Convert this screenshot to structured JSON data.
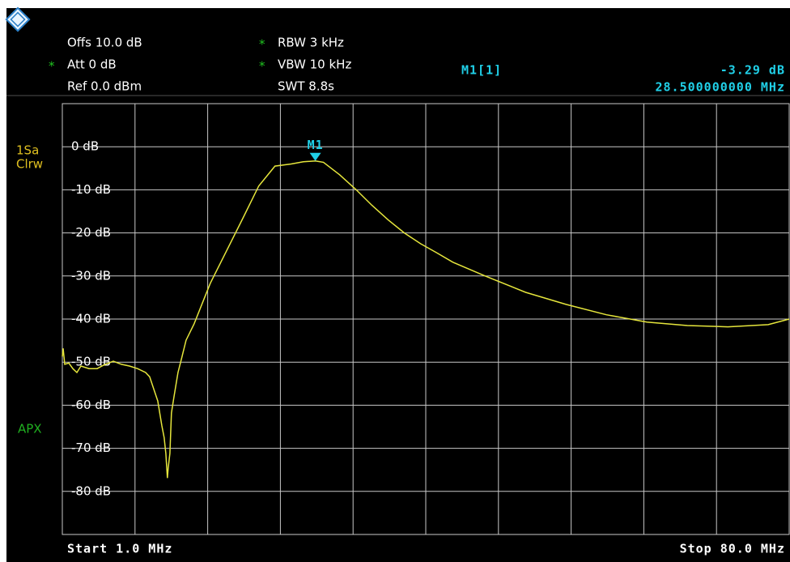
{
  "chart_data": {
    "type": "line",
    "settings_left": [
      {
        "text": "Offs 10.0 dB"
      },
      {
        "flag": "*",
        "text": "Att  0 dB"
      },
      {
        "text": "Ref  0.0 dBm"
      }
    ],
    "settings_mid": [
      {
        "flag": "*",
        "text": "RBW 3 kHz"
      },
      {
        "flag": "*",
        "text": "VBW 10 kHz"
      },
      {
        "text": "SWT 8.8s"
      }
    ],
    "trace_mode": [
      "1Sa",
      "Clrw"
    ],
    "detector": "APX",
    "marker": {
      "label": "M1",
      "readout_label": "M1[1]",
      "x": 28.5,
      "y": -3.29,
      "value_label": "-3.29 dB",
      "x_label": "28.500000000 MHz"
    },
    "x_start_label": "Start 1.0 MHz",
    "x_stop_label": "Stop 80.0 MHz",
    "xlim": [
      1,
      80
    ],
    "ylim": [
      -90,
      10
    ],
    "yticks": [
      {
        "value": 0,
        "label": "0 dB"
      },
      {
        "value": -10,
        "label": "-10 dB"
      },
      {
        "value": -20,
        "label": "-20 dB"
      },
      {
        "value": -30,
        "label": "-30 dB"
      },
      {
        "value": -40,
        "label": "-40 dB"
      },
      {
        "value": -50,
        "label": "-50 dB"
      },
      {
        "value": -60,
        "label": "-60 dB"
      },
      {
        "value": -70,
        "label": "-70 dB"
      },
      {
        "value": -80,
        "label": "-80 dB"
      }
    ],
    "grid": true,
    "color": "#e6e63c",
    "x": [
      1.0,
      1.09,
      1.26,
      1.7,
      2.14,
      2.58,
      3.02,
      3.9,
      4.78,
      5.66,
      6.54,
      7.42,
      8.29,
      9.17,
      10.05,
      10.49,
      10.93,
      11.37,
      11.81,
      12.07,
      12.25,
      12.42,
      12.51,
      12.69,
      12.86,
      13.13,
      13.57,
      14.01,
      14.45,
      15.32,
      16.2,
      17.08,
      18.84,
      20.6,
      22.35,
      24.11,
      25.87,
      27.19,
      28.5,
      29.38,
      31.14,
      32.9,
      34.66,
      36.42,
      38.17,
      39.93,
      41.69,
      43.45,
      46.96,
      51.36,
      55.75,
      60.14,
      64.54,
      68.93,
      73.33,
      77.72,
      80.0
    ],
    "values": [
      -48.7,
      -46.8,
      -50.5,
      -50.2,
      -51.5,
      -52.4,
      -50.9,
      -51.5,
      -51.5,
      -50.5,
      -49.8,
      -50.5,
      -50.9,
      -51.5,
      -52.4,
      -53.4,
      -56.2,
      -59.0,
      -64.7,
      -67.5,
      -71.2,
      -76.9,
      -74.6,
      -71.2,
      -61.8,
      -58.1,
      -52.4,
      -48.7,
      -44.9,
      -41.1,
      -36.4,
      -31.7,
      -24.2,
      -16.7,
      -9.1,
      -4.5,
      -4.0,
      -3.5,
      -3.29,
      -3.6,
      -6.5,
      -9.9,
      -13.6,
      -17.0,
      -20.0,
      -22.5,
      -24.6,
      -26.8,
      -30.0,
      -33.8,
      -36.6,
      -39.0,
      -40.7,
      -41.5,
      -41.8,
      -41.3,
      -40.0
    ]
  }
}
